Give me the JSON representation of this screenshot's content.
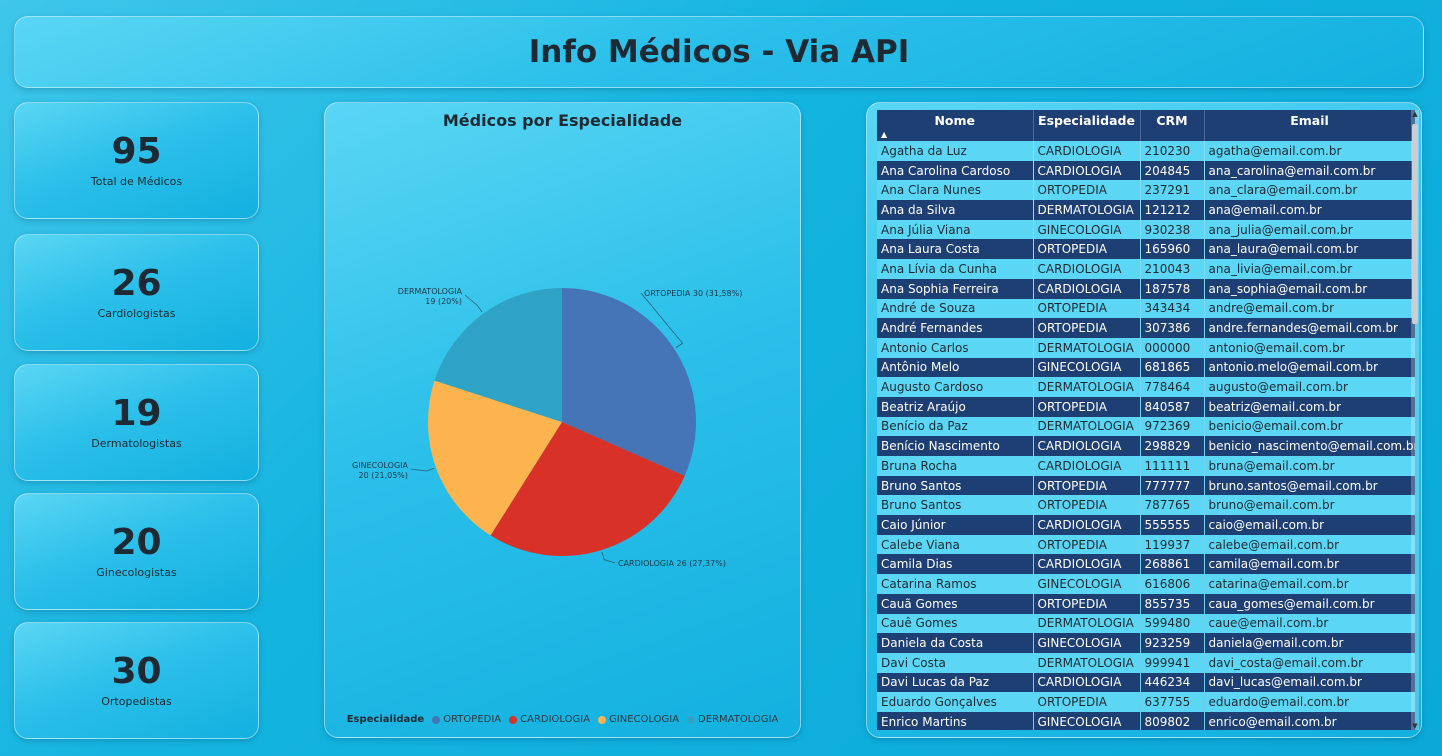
{
  "header": {
    "title": "Info Médicos - Via API"
  },
  "kpis": [
    {
      "value": "95",
      "label": "Total de Médicos"
    },
    {
      "value": "26",
      "label": "Cardiologistas"
    },
    {
      "value": "19",
      "label": "Dermatologistas"
    },
    {
      "value": "20",
      "label": "Ginecologistas"
    },
    {
      "value": "30",
      "label": "Ortopedistas"
    }
  ],
  "chart_data": {
    "type": "pie",
    "title": "Médicos por Especialidade",
    "slices": [
      {
        "name": "ORTOPEDIA",
        "value": 30,
        "percent": "31,58%",
        "label": "ORTOPEDIA 30 (31,58%)",
        "color": "#4575b6"
      },
      {
        "name": "CARDIOLOGIA",
        "value": 26,
        "percent": "27,37%",
        "label": "CARDIOLOGIA 26 (27,37%)",
        "color": "#d83228"
      },
      {
        "name": "GINECOLOGIA",
        "value": 20,
        "percent": "21,05%",
        "label_line1": "GINECOLOGIA",
        "label_line2": "20 (21,05%)",
        "color": "#fdb44e"
      },
      {
        "name": "DERMATOLOGIA",
        "value": 19,
        "percent": "20%",
        "label_line1": "DERMATOLOGIA",
        "label_line2": "19 (20%)",
        "color": "#2fa3c5"
      }
    ],
    "legend": {
      "title": "Especialidade",
      "position": "bottom",
      "items": [
        "ORTOPEDIA",
        "CARDIOLOGIA",
        "GINECOLOGIA",
        "DERMATOLOGIA"
      ]
    }
  },
  "table": {
    "columns": [
      "Nome",
      "Especialidade",
      "CRM",
      "Email"
    ],
    "sort_indicator": "▲",
    "rows": [
      [
        "Agatha da Luz",
        "CARDIOLOGIA",
        "210230",
        "agatha@email.com.br"
      ],
      [
        "Ana Carolina Cardoso",
        "CARDIOLOGIA",
        "204845",
        "ana_carolina@email.com.br"
      ],
      [
        "Ana Clara Nunes",
        "ORTOPEDIA",
        "237291",
        "ana_clara@email.com.br"
      ],
      [
        "Ana da Silva",
        "DERMATOLOGIA",
        "121212",
        "ana@email.com.br"
      ],
      [
        "Ana Júlia Viana",
        "GINECOLOGIA",
        "930238",
        "ana_julia@email.com.br"
      ],
      [
        "Ana Laura Costa",
        "ORTOPEDIA",
        "165960",
        "ana_laura@email.com.br"
      ],
      [
        "Ana Lívia da Cunha",
        "CARDIOLOGIA",
        "210043",
        "ana_livia@email.com.br"
      ],
      [
        "Ana Sophia Ferreira",
        "CARDIOLOGIA",
        "187578",
        "ana_sophia@email.com.br"
      ],
      [
        "André de Souza",
        "ORTOPEDIA",
        "343434",
        "andre@email.com.br"
      ],
      [
        "André Fernandes",
        "ORTOPEDIA",
        "307386",
        "andre.fernandes@email.com.br"
      ],
      [
        "Antonio Carlos",
        "DERMATOLOGIA",
        "000000",
        "antonio@email.com.br"
      ],
      [
        "Antônio Melo",
        "GINECOLOGIA",
        "681865",
        "antonio.melo@email.com.br"
      ],
      [
        "Augusto Cardoso",
        "DERMATOLOGIA",
        "778464",
        "augusto@email.com.br"
      ],
      [
        "Beatriz Araújo",
        "ORTOPEDIA",
        "840587",
        "beatriz@email.com.br"
      ],
      [
        "Benício da Paz",
        "DERMATOLOGIA",
        "972369",
        "benicio@email.com.br"
      ],
      [
        "Benício Nascimento",
        "CARDIOLOGIA",
        "298829",
        "benicio_nascimento@email.com.br"
      ],
      [
        "Bruna Rocha",
        "CARDIOLOGIA",
        "111111",
        "bruna@email.com.br"
      ],
      [
        "Bruno Santos",
        "ORTOPEDIA",
        "777777",
        "bruno.santos@email.com.br"
      ],
      [
        "Bruno Santos",
        "ORTOPEDIA",
        "787765",
        "bruno@email.com.br"
      ],
      [
        "Caio Júnior",
        "CARDIOLOGIA",
        "555555",
        "caio@email.com.br"
      ],
      [
        "Calebe Viana",
        "ORTOPEDIA",
        "119937",
        "calebe@email.com.br"
      ],
      [
        "Camila Dias",
        "CARDIOLOGIA",
        "268861",
        "camila@email.com.br"
      ],
      [
        "Catarina Ramos",
        "GINECOLOGIA",
        "616806",
        "catarina@email.com.br"
      ],
      [
        "Cauã Gomes",
        "ORTOPEDIA",
        "855735",
        "caua_gomes@email.com.br"
      ],
      [
        "Cauê Gomes",
        "DERMATOLOGIA",
        "599480",
        "caue@email.com.br"
      ],
      [
        "Daniela da Costa",
        "GINECOLOGIA",
        "923259",
        "daniela@email.com.br"
      ],
      [
        "Davi Costa",
        "DERMATOLOGIA",
        "999941",
        "davi_costa@email.com.br"
      ],
      [
        "Davi Lucas da Paz",
        "CARDIOLOGIA",
        "446234",
        "davi_lucas@email.com.br"
      ],
      [
        "Eduardo Gonçalves",
        "ORTOPEDIA",
        "637755",
        "eduardo@email.com.br"
      ],
      [
        "Enrico Martins",
        "GINECOLOGIA",
        "809802",
        "enrico@email.com.br"
      ]
    ]
  }
}
